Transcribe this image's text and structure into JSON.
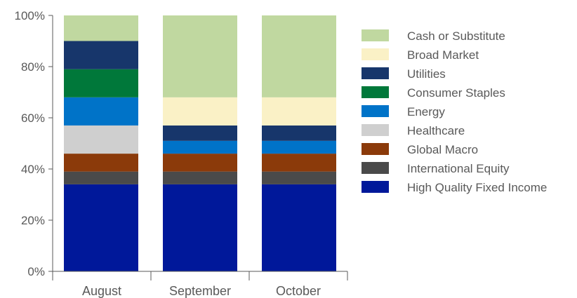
{
  "chart_data": {
    "type": "bar",
    "stacked": true,
    "categories": [
      "August",
      "September",
      "October"
    ],
    "ylim": [
      0,
      100
    ],
    "yticks": [
      0,
      20,
      40,
      60,
      80,
      100
    ],
    "ytick_labels": [
      "0%",
      "20%",
      "40%",
      "60%",
      "80%",
      "100%"
    ],
    "legend_placement": "right",
    "series": [
      {
        "name": "High Quality Fixed Income",
        "color": "#00189A",
        "values": [
          34,
          34,
          34
        ]
      },
      {
        "name": "International Equity",
        "color": "#4A4A4A",
        "values": [
          5,
          5,
          5
        ]
      },
      {
        "name": "Global Macro",
        "color": "#8B3A0A",
        "values": [
          7,
          7,
          7
        ]
      },
      {
        "name": "Healthcare",
        "color": "#CFCFCF",
        "values": [
          11,
          0,
          0
        ]
      },
      {
        "name": "Energy",
        "color": "#0073C8",
        "values": [
          11,
          5,
          5
        ]
      },
      {
        "name": "Consumer Staples",
        "color": "#00783A",
        "values": [
          11,
          0,
          0
        ]
      },
      {
        "name": "Utilities",
        "color": "#17366B",
        "values": [
          11,
          6,
          6
        ]
      },
      {
        "name": "Broad Market",
        "color": "#FAF1C6",
        "values": [
          0,
          11,
          11
        ]
      },
      {
        "name": "Cash or Substitute",
        "color": "#C0D8A0",
        "values": [
          10,
          32,
          32
        ]
      }
    ]
  }
}
